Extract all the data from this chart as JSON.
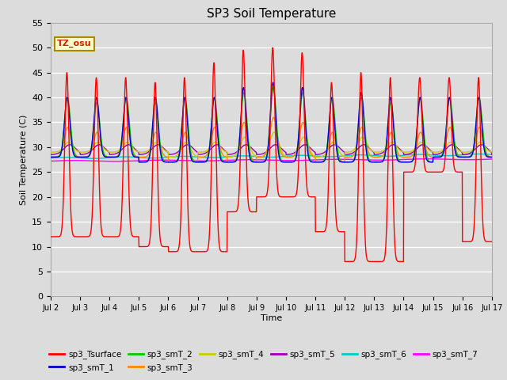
{
  "title": "SP3 Soil Temperature",
  "xlabel": "Time",
  "ylabel": "Soil Temperature (C)",
  "ylim": [
    0,
    55
  ],
  "yticks": [
    0,
    5,
    10,
    15,
    20,
    25,
    30,
    35,
    40,
    45,
    50,
    55
  ],
  "plot_bg_color": "#dcdcdc",
  "fig_bg_color": "#dcdcdc",
  "annotation_text": "TZ_osu",
  "annotation_bg": "#ffffcc",
  "annotation_border": "#aa8800",
  "series_colors": {
    "sp3_Tsurface": "#ff0000",
    "sp3_smT_1": "#0000cc",
    "sp3_smT_2": "#00cc00",
    "sp3_smT_3": "#ff8800",
    "sp3_smT_4": "#cccc00",
    "sp3_smT_5": "#9900aa",
    "sp3_smT_6": "#00cccc",
    "sp3_smT_7": "#ff00ff"
  },
  "n_points": 2000
}
